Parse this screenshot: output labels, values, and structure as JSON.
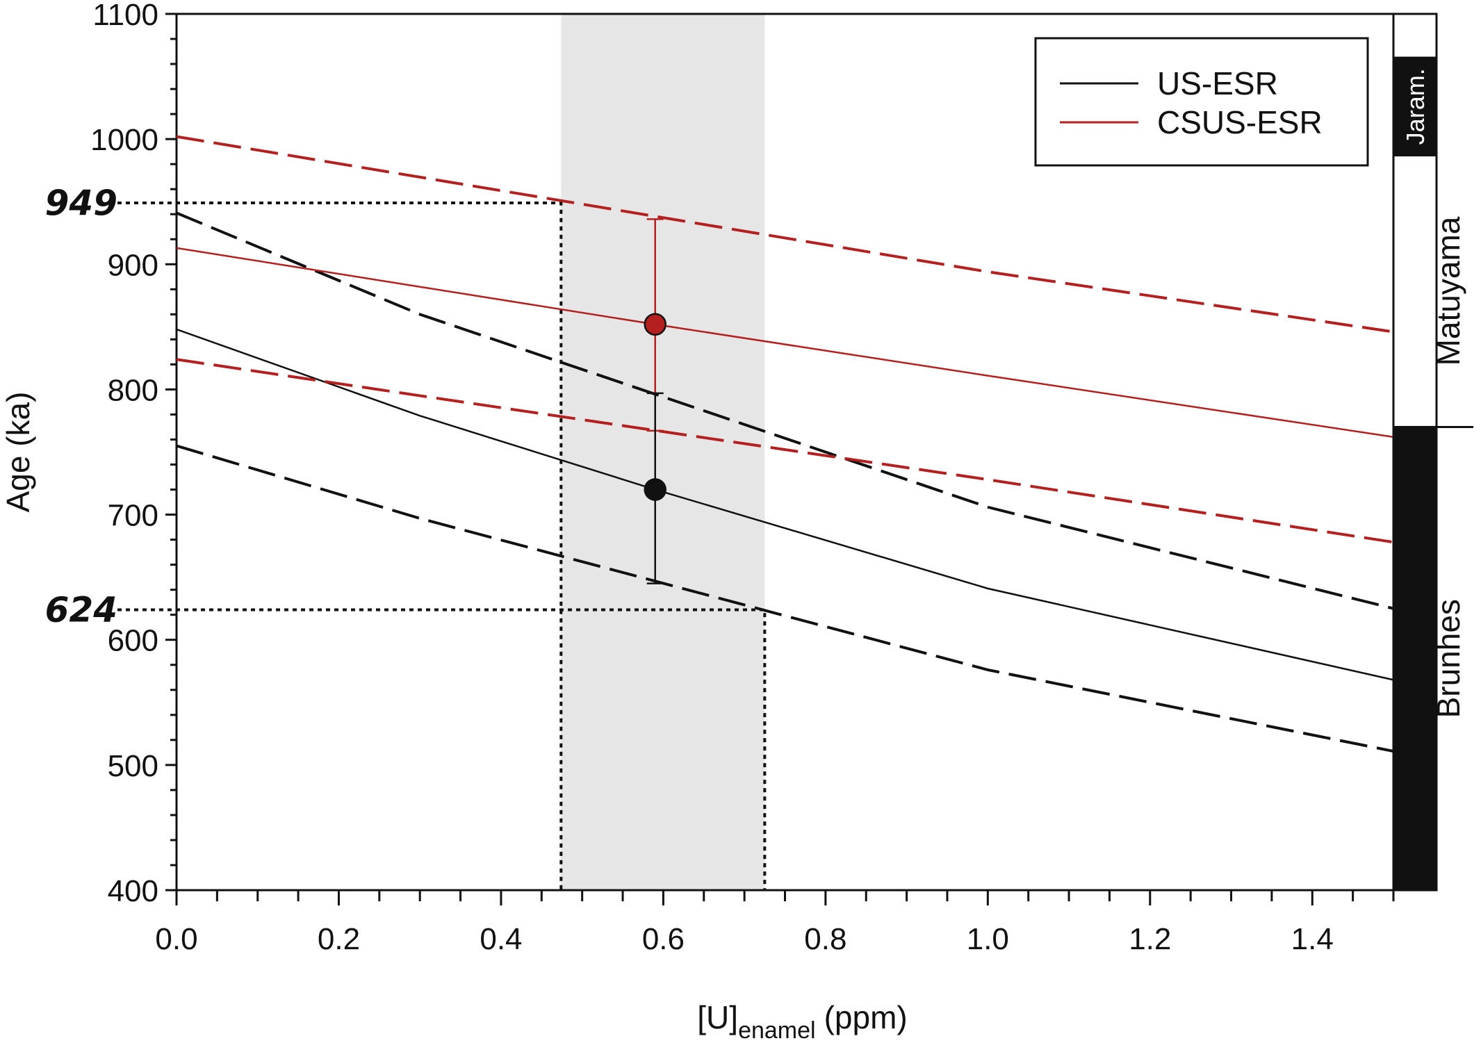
{
  "chart_data": {
    "type": "line",
    "xlabel_main": "[U]",
    "xlabel_sub": "enamel",
    "xlabel_unit": "(ppm)",
    "ylabel": "Age (ka)",
    "xlim": [
      0,
      1.5
    ],
    "ylim": [
      400,
      1100
    ],
    "xticks": [
      "0.0",
      "0.2",
      "0.4",
      "0.6",
      "0.8",
      "1.0",
      "1.2",
      "1.4"
    ],
    "yticks": [
      "400",
      "500",
      "600",
      "700",
      "800",
      "900",
      "1000",
      "1100"
    ],
    "legend": {
      "placement": "top-right",
      "entries": [
        {
          "label": "US-ESR",
          "color": "#111111"
        },
        {
          "label": "CSUS-ESR",
          "color": "#b3201f"
        }
      ]
    },
    "series": [
      {
        "name": "US-ESR",
        "color": "#111111",
        "style": "solid",
        "x": [
          0,
          0.3,
          0.59,
          1.0,
          1.5
        ],
        "y": [
          848,
          779,
          720,
          641,
          568
        ]
      },
      {
        "name": "US-ESR upper",
        "color": "#111111",
        "style": "dashed",
        "x": [
          0,
          0.3,
          1.0,
          1.5
        ],
        "y": [
          941,
          860,
          706,
          625
        ]
      },
      {
        "name": "US-ESR lower",
        "color": "#111111",
        "style": "dashed",
        "x": [
          0,
          0.3,
          1.0,
          1.5
        ],
        "y": [
          755,
          697,
          576,
          511
        ]
      },
      {
        "name": "CSUS-ESR",
        "color": "#b3201f",
        "style": "solid",
        "x": [
          0,
          0.3,
          0.59,
          1.0,
          1.5
        ],
        "y": [
          913,
          882,
          852,
          811,
          762
        ]
      },
      {
        "name": "CSUS-ESR upper",
        "color": "#b3201f",
        "style": "dashed",
        "x": [
          0,
          1.0,
          1.5
        ],
        "y": [
          1002,
          894,
          846
        ]
      },
      {
        "name": "CSUS-ESR lower",
        "color": "#b3201f",
        "style": "dashed",
        "x": [
          0,
          0.3,
          1.0,
          1.5
        ],
        "y": [
          824,
          795,
          728,
          678
        ]
      }
    ],
    "points": [
      {
        "name": "US-ESR",
        "x": 0.59,
        "y": 720,
        "err_low": 645,
        "err_high": 797,
        "color": "#111111"
      },
      {
        "name": "CSUS-ESR",
        "x": 0.59,
        "y": 852,
        "err_low": 767,
        "err_high": 936,
        "color": "#b3201f"
      }
    ],
    "shaded_x_range": [
      0.474,
      0.725
    ],
    "annotations": [
      {
        "label": "949",
        "y": 949,
        "x_end": 0.474
      },
      {
        "label": "624",
        "y": 624,
        "x_end": 0.725
      }
    ],
    "chrons": [
      {
        "label": "Matuyama",
        "from": 770,
        "to": 1100,
        "fill": "#ffffff"
      },
      {
        "label": "Jaram.",
        "from": 987,
        "to": 1065,
        "fill": "#111111"
      },
      {
        "label": "Brunhes",
        "from": 400,
        "to": 770,
        "fill": "#111111"
      }
    ]
  }
}
